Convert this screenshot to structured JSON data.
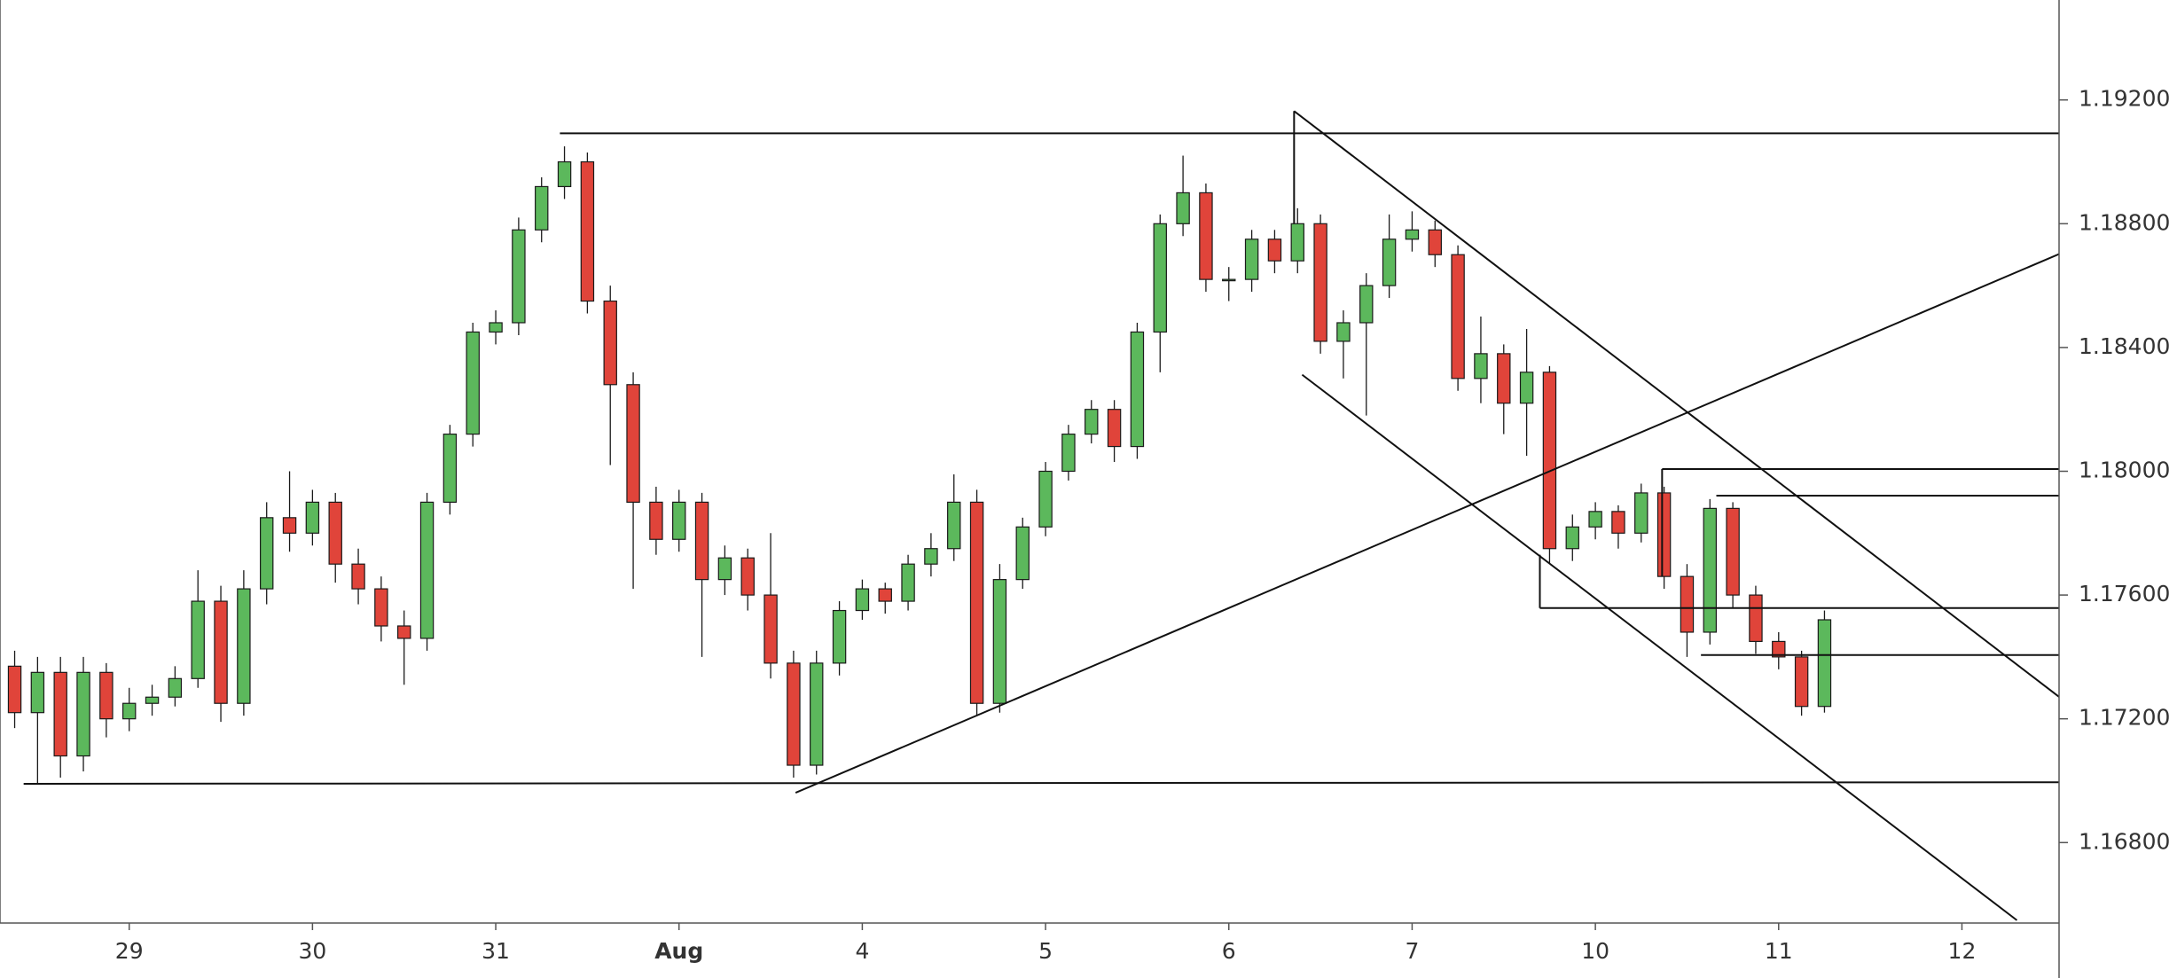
{
  "chart_data": {
    "type": "candlestick",
    "up_color": "#5cb85c",
    "down_color": "#e0443a",
    "outline_color": "#1a1a1a",
    "line_color": "#111111",
    "xlim": [
      -0.705,
      10.53
    ],
    "ylim": [
      1.1654,
      1.19523
    ],
    "xticks": [
      {
        "value": 0,
        "label": "29"
      },
      {
        "value": 1,
        "label": "30"
      },
      {
        "value": 2,
        "label": "31"
      },
      {
        "value": 3,
        "label": "Aug"
      },
      {
        "value": 4,
        "label": "4"
      },
      {
        "value": 5,
        "label": "5"
      },
      {
        "value": 6,
        "label": "6"
      },
      {
        "value": 7,
        "label": "7"
      },
      {
        "value": 8,
        "label": "10"
      },
      {
        "value": 9,
        "label": "11"
      },
      {
        "value": 10,
        "label": "12"
      }
    ],
    "yticks": [
      {
        "value": 1.192,
        "label": "1.19200"
      },
      {
        "value": 1.188,
        "label": "1.18800"
      },
      {
        "value": 1.184,
        "label": "1.18400"
      },
      {
        "value": 1.18,
        "label": "1.18000"
      },
      {
        "value": 1.176,
        "label": "1.17600"
      },
      {
        "value": 1.172,
        "label": "1.17200"
      },
      {
        "value": 1.168,
        "label": "1.16800"
      }
    ],
    "x": [
      -0.625,
      -0.5,
      -0.375,
      -0.25,
      -0.125,
      0,
      0.125,
      0.25,
      0.375,
      0.5,
      0.625,
      0.75,
      0.875,
      1,
      1.125,
      1.25,
      1.375,
      1.5,
      1.625,
      1.75,
      1.875,
      2,
      2.125,
      2.25,
      2.375,
      2.5,
      2.625,
      2.75,
      2.875,
      3,
      3.125,
      3.25,
      3.375,
      3.5,
      3.625,
      3.75,
      3.875,
      4,
      4.125,
      4.25,
      4.375,
      4.5,
      4.625,
      4.75,
      4.875,
      5,
      5.125,
      5.25,
      5.375,
      5.5,
      5.625,
      5.75,
      5.875,
      6,
      6.125,
      6.25,
      6.375,
      6.5,
      6.625,
      6.75,
      6.875,
      7,
      7.125,
      7.25,
      7.375,
      7.5,
      7.625,
      7.75,
      7.875,
      8,
      8.125,
      8.25,
      8.375,
      8.5,
      8.625,
      8.75,
      8.875,
      9,
      9.125,
      9.25
    ],
    "open": [
      1.1737,
      1.1722,
      1.1735,
      1.1708,
      1.1735,
      1.172,
      1.1725,
      1.1727,
      1.1733,
      1.1758,
      1.1725,
      1.1762,
      1.1785,
      1.178,
      1.179,
      1.177,
      1.1762,
      1.175,
      1.1746,
      1.179,
      1.1812,
      1.1845,
      1.1848,
      1.1878,
      1.1892,
      1.19,
      1.1855,
      1.1828,
      1.179,
      1.1778,
      1.179,
      1.1765,
      1.1772,
      1.176,
      1.1738,
      1.1705,
      1.1738,
      1.1755,
      1.1762,
      1.1758,
      1.177,
      1.1775,
      1.179,
      1.1725,
      1.1765,
      1.1782,
      1.18,
      1.1812,
      1.182,
      1.1808,
      1.1845,
      1.188,
      1.189,
      1.1862,
      1.1862,
      1.1875,
      1.1868,
      1.188,
      1.1842,
      1.1848,
      1.186,
      1.1875,
      1.1878,
      1.187,
      1.183,
      1.1838,
      1.1822,
      1.1832,
      1.1775,
      1.1782,
      1.1787,
      1.178,
      1.1793,
      1.1766,
      1.1748,
      1.1788,
      1.176,
      1.1745,
      1.174,
      1.1724
    ],
    "high": [
      1.1742,
      1.174,
      1.174,
      1.174,
      1.1738,
      1.173,
      1.1731,
      1.1737,
      1.1768,
      1.1763,
      1.1768,
      1.179,
      1.18,
      1.1794,
      1.1793,
      1.1775,
      1.1766,
      1.1755,
      1.1793,
      1.1815,
      1.1848,
      1.1852,
      1.1882,
      1.1895,
      1.1905,
      1.1903,
      1.186,
      1.1832,
      1.1795,
      1.1794,
      1.1793,
      1.1776,
      1.1775,
      1.178,
      1.1742,
      1.1742,
      1.1758,
      1.1765,
      1.1764,
      1.1773,
      1.178,
      1.1799,
      1.1794,
      1.177,
      1.1785,
      1.1803,
      1.1815,
      1.1823,
      1.1823,
      1.1848,
      1.1883,
      1.1902,
      1.1893,
      1.1866,
      1.1878,
      1.1878,
      1.1885,
      1.1883,
      1.1852,
      1.1864,
      1.1883,
      1.1884,
      1.1881,
      1.1873,
      1.185,
      1.1841,
      1.1846,
      1.1834,
      1.1786,
      1.179,
      1.1789,
      1.1796,
      1.1795,
      1.177,
      1.1791,
      1.179,
      1.1763,
      1.1748,
      1.1742,
      1.1755
    ],
    "low": [
      1.1717,
      1.1699,
      1.1701,
      1.1703,
      1.1714,
      1.1716,
      1.1721,
      1.1724,
      1.173,
      1.1719,
      1.1721,
      1.1757,
      1.1774,
      1.1776,
      1.1764,
      1.1757,
      1.1745,
      1.1731,
      1.1742,
      1.1786,
      1.1808,
      1.1841,
      1.1844,
      1.1874,
      1.1888,
      1.1851,
      1.1802,
      1.1762,
      1.1773,
      1.1774,
      1.174,
      1.176,
      1.1755,
      1.1733,
      1.1701,
      1.1702,
      1.1734,
      1.1752,
      1.1754,
      1.1755,
      1.1766,
      1.1771,
      1.1721,
      1.1722,
      1.1762,
      1.1779,
      1.1797,
      1.1809,
      1.1803,
      1.1804,
      1.1832,
      1.1876,
      1.1858,
      1.1855,
      1.1858,
      1.1864,
      1.1864,
      1.1838,
      1.183,
      1.1818,
      1.1856,
      1.1871,
      1.1866,
      1.1826,
      1.1822,
      1.1812,
      1.1805,
      1.177,
      1.1771,
      1.1778,
      1.1775,
      1.1777,
      1.1762,
      1.174,
      1.1744,
      1.1756,
      1.1741,
      1.1736,
      1.1721,
      1.1722
    ],
    "close": [
      1.1722,
      1.1735,
      1.1708,
      1.1735,
      1.172,
      1.1725,
      1.1727,
      1.1733,
      1.1758,
      1.1725,
      1.1762,
      1.1785,
      1.178,
      1.179,
      1.177,
      1.1762,
      1.175,
      1.1746,
      1.179,
      1.1812,
      1.1845,
      1.1848,
      1.1878,
      1.1892,
      1.19,
      1.1855,
      1.1828,
      1.179,
      1.1778,
      1.179,
      1.1765,
      1.1772,
      1.176,
      1.1738,
      1.1705,
      1.1738,
      1.1755,
      1.1762,
      1.1758,
      1.177,
      1.1775,
      1.179,
      1.1725,
      1.1765,
      1.1782,
      1.18,
      1.1812,
      1.182,
      1.1808,
      1.1845,
      1.188,
      1.189,
      1.1862,
      1.1862,
      1.1875,
      1.1868,
      1.188,
      1.1842,
      1.1848,
      1.186,
      1.1875,
      1.1878,
      1.187,
      1.183,
      1.1838,
      1.1822,
      1.1832,
      1.1775,
      1.1782,
      1.1787,
      1.178,
      1.1793,
      1.1766,
      1.1748,
      1.1788,
      1.176,
      1.1745,
      1.174,
      1.1724,
      1.1752
    ],
    "lines": [
      {
        "x1": 2.35,
        "y1": 1.19092,
        "x2": 10.53,
        "y2": 1.19092
      },
      {
        "x1": -0.576,
        "y1": 1.1699,
        "x2": 10.53,
        "y2": 1.16995
      },
      {
        "x1": 3.636,
        "y1": 1.16961,
        "x2": 10.53,
        "y2": 1.18702
      },
      {
        "x1": 6.356,
        "y1": 1.19164,
        "x2": 10.53,
        "y2": 1.17271
      },
      {
        "x1": 6.356,
        "y1": 1.19164,
        "x2": 6.356,
        "y2": 1.188
      },
      {
        "x1": 6.4,
        "y1": 1.18312,
        "x2": 10.3,
        "y2": 1.16549
      },
      {
        "x1": 8.364,
        "y1": 1.18007,
        "x2": 10.53,
        "y2": 1.18007
      },
      {
        "x1": 8.364,
        "y1": 1.18007,
        "x2": 8.364,
        "y2": 1.1766
      },
      {
        "x1": 8.66,
        "y1": 1.17921,
        "x2": 10.53,
        "y2": 1.17921
      },
      {
        "x1": 7.697,
        "y1": 1.17558,
        "x2": 10.53,
        "y2": 1.17558
      },
      {
        "x1": 7.697,
        "y1": 1.17558,
        "x2": 7.697,
        "y2": 1.1773
      },
      {
        "x1": 8.576,
        "y1": 1.17406,
        "x2": 10.53,
        "y2": 1.17406
      }
    ]
  }
}
